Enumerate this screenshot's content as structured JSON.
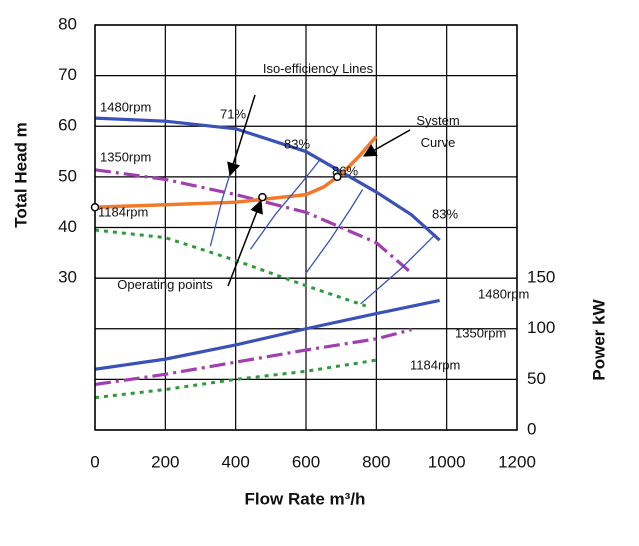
{
  "chart_data": {
    "type": "line",
    "xlabel": "Flow Rate m³/h",
    "ylabel": "Total Head m",
    "y2label": "Power kW",
    "annotations": [
      "Iso-efficiency Lines"
    ],
    "xlim": [
      0,
      1200
    ],
    "xticks": [
      0,
      200,
      400,
      600,
      800,
      1000,
      1200
    ],
    "ylim": [
      0,
      80
    ],
    "yticks": [
      30,
      40,
      50,
      60,
      70,
      80
    ],
    "y2lim": [
      0,
      400
    ],
    "y2ticks": [
      0,
      50,
      100,
      150
    ],
    "grid": true,
    "series": [
      {
        "name": "1480rpm",
        "color": "#3a52b8",
        "style": "solid",
        "axis": "y",
        "x": [
          0,
          200,
          400,
          600,
          700,
          800,
          900,
          980
        ],
        "values": [
          61.6,
          61,
          59.5,
          55,
          51,
          47,
          42.5,
          37.5
        ]
      },
      {
        "name": "1350rpm",
        "color": "#a23fb0",
        "style": "dashdot",
        "axis": "y",
        "x": [
          0,
          200,
          400,
          600,
          800,
          900
        ],
        "values": [
          51.4,
          49.5,
          46.5,
          43,
          37,
          31
        ]
      },
      {
        "name": "1184rpm",
        "color": "#2f9a3c",
        "style": "dotted",
        "axis": "y",
        "x": [
          0,
          200,
          400,
          600,
          770
        ],
        "values": [
          39.5,
          38,
          33.5,
          28.5,
          24.5
        ]
      },
      {
        "name": "1480rpm",
        "color": "#3a52b8",
        "style": "solid",
        "axis": "y2",
        "x": [
          0,
          200,
          400,
          600,
          800,
          980
        ],
        "values": [
          60,
          70,
          84,
          100,
          115,
          128
        ]
      },
      {
        "name": "1350rpm",
        "color": "#a23fb0",
        "style": "dashdot",
        "axis": "y2",
        "x": [
          0,
          200,
          400,
          600,
          800,
          900
        ],
        "values": [
          45,
          55,
          67,
          79,
          90,
          99
        ]
      },
      {
        "name": "1184rpm",
        "color": "#2f9a3c",
        "style": "dotted",
        "axis": "y2",
        "x": [
          0,
          200,
          400,
          600,
          800
        ],
        "values": [
          32,
          40,
          50,
          58,
          69
        ]
      },
      {
        "name": "System Curve",
        "color": "#f07a2a",
        "style": "thick",
        "axis": "y",
        "x": [
          0,
          200,
          400,
          600,
          650,
          700,
          750,
          800
        ],
        "values": [
          44,
          44.5,
          45,
          46.5,
          48,
          50.5,
          54,
          58
        ]
      },
      {
        "name": "71%",
        "color": "#3a52b8",
        "style": "thin",
        "axis": "y",
        "x": [
          328,
          362,
          405
        ],
        "values": [
          36.3,
          45.6,
          55.4
        ]
      },
      {
        "name": "83%",
        "color": "#3a52b8",
        "style": "thin",
        "axis": "y",
        "x": [
          442,
          513,
          584,
          641
        ],
        "values": [
          35.7,
          42.6,
          48.5,
          53.5
        ]
      },
      {
        "name": "86%",
        "color": "#3a52b8",
        "style": "thin",
        "axis": "y",
        "x": [
          598,
          670,
          726,
          761
        ],
        "values": [
          30.8,
          37.7,
          43.6,
          47.5
        ]
      },
      {
        "name": "83%",
        "color": "#3a52b8",
        "style": "thin",
        "axis": "y",
        "x": [
          755,
          869,
          969
        ],
        "values": [
          24.9,
          31.8,
          38.7
        ]
      }
    ],
    "operating_points": {
      "label": "Operating points",
      "x": [
        0,
        476,
        689
      ],
      "values": [
        44,
        46,
        50
      ]
    }
  }
}
